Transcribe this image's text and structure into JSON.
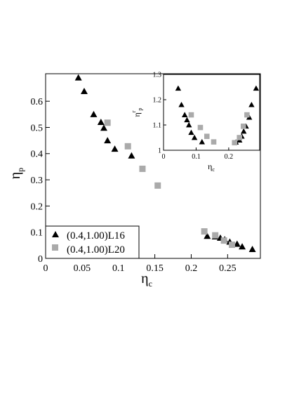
{
  "chart_data": [
    {
      "type": "scatter",
      "panel": "main",
      "xlabel_main": "η",
      "xlabel_sub": "c",
      "ylabel_main": "η",
      "ylabel_sub": "p",
      "xlim": [
        0,
        0.295
      ],
      "ylim": [
        0,
        0.705
      ],
      "xticks": [
        0,
        0.05,
        0.1,
        0.15,
        0.2,
        0.25
      ],
      "xtick_labels": [
        "0",
        "0.05",
        "0.1",
        "0.15",
        "0.2",
        "0.25"
      ],
      "yticks": [
        0,
        0.1,
        0.2,
        0.3,
        0.4,
        0.5,
        0.6
      ],
      "ytick_labels": [
        "0",
        "0.1",
        "0.2",
        "0.3",
        "0.4",
        "0.5",
        "0.6"
      ],
      "grid": false,
      "legend_position": "bottom-left",
      "series": [
        {
          "name": "(0.4,1.00)L16",
          "marker": "triangle",
          "color": "#000000",
          "x": [
            0.045,
            0.053,
            0.066,
            0.076,
            0.08,
            0.085,
            0.095,
            0.118,
            0.222,
            0.233,
            0.24,
            0.246,
            0.253,
            0.263,
            0.27,
            0.284
          ],
          "y": [
            0.69,
            0.638,
            0.55,
            0.52,
            0.498,
            0.45,
            0.418,
            0.392,
            0.085,
            0.083,
            0.078,
            0.072,
            0.063,
            0.055,
            0.045,
            0.035
          ]
        },
        {
          "name": "(0.4,1.00)L20",
          "marker": "square",
          "color": "#aaaaaa",
          "x": [
            0.085,
            0.113,
            0.133,
            0.154,
            0.218,
            0.233,
            0.245,
            0.256
          ],
          "y": [
            0.518,
            0.428,
            0.342,
            0.278,
            0.103,
            0.088,
            0.068,
            0.052
          ]
        }
      ]
    },
    {
      "type": "scatter",
      "panel": "inset",
      "xlabel_main": "η",
      "xlabel_sub": "c",
      "ylabel_main": "η",
      "ylabel_sub": "p",
      "ylabel_sup": "r",
      "xlim": [
        0,
        0.295
      ],
      "ylim": [
        1.0,
        1.3
      ],
      "xticks": [
        0,
        0.1,
        0.2
      ],
      "xtick_labels": [
        "0",
        "0.1",
        "0.2"
      ],
      "yticks": [
        1.0,
        1.1,
        1.2,
        1.3
      ],
      "ytick_labels": [
        "1",
        "1.1",
        "1.2",
        "1.3"
      ],
      "grid": false,
      "series": [
        {
          "name": "L16",
          "marker": "triangle",
          "color": "#000000",
          "x": [
            0.045,
            0.055,
            0.065,
            0.072,
            0.078,
            0.085,
            0.095,
            0.118,
            0.222,
            0.233,
            0.24,
            0.246,
            0.253,
            0.263,
            0.27,
            0.284
          ],
          "y": [
            1.245,
            1.18,
            1.14,
            1.12,
            1.1,
            1.07,
            1.05,
            1.033,
            1.032,
            1.04,
            1.055,
            1.075,
            1.095,
            1.13,
            1.18,
            1.245
          ]
        },
        {
          "name": "L20",
          "marker": "square",
          "color": "#aaaaaa",
          "x": [
            0.085,
            0.113,
            0.133,
            0.154,
            0.218,
            0.233,
            0.245,
            0.256
          ],
          "y": [
            1.14,
            1.09,
            1.055,
            1.033,
            1.03,
            1.05,
            1.095,
            1.14
          ]
        }
      ]
    }
  ]
}
